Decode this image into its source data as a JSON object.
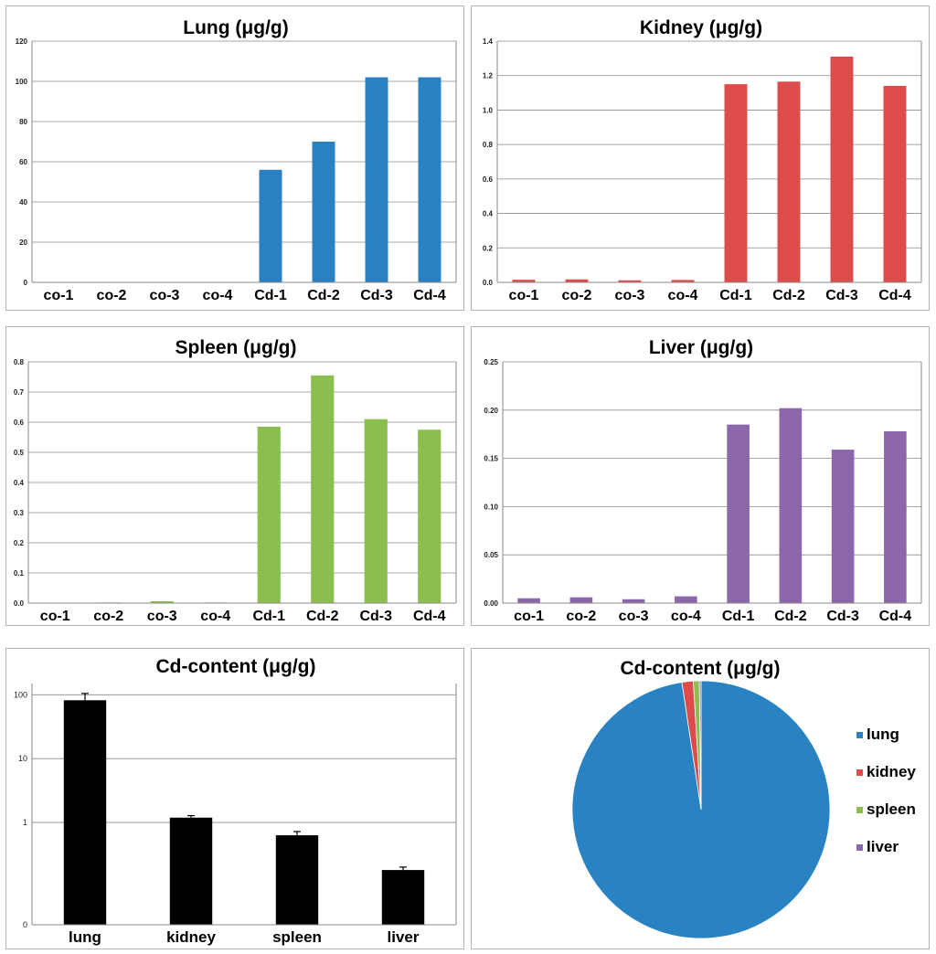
{
  "chart_data": [
    {
      "id": "lung",
      "type": "bar",
      "title": "Lung (μg/g)",
      "categories": [
        "co-1",
        "co-2",
        "co-3",
        "co-4",
        "Cd-1",
        "Cd-2",
        "Cd-3",
        "Cd-4"
      ],
      "values": [
        0,
        0,
        0,
        0,
        56,
        70,
        102,
        102
      ],
      "ylim": [
        0,
        120
      ],
      "yticks": [
        0,
        20,
        40,
        60,
        80,
        100,
        120
      ],
      "ytick_labels": [
        "0",
        "20",
        "40",
        "60",
        "80",
        "100",
        "120"
      ],
      "color": "#2980c2",
      "grid": true
    },
    {
      "id": "kidney",
      "type": "bar",
      "title": "Kidney (μg/g)",
      "categories": [
        "co-1",
        "co-2",
        "co-3",
        "co-4",
        "Cd-1",
        "Cd-2",
        "Cd-3",
        "Cd-4"
      ],
      "values": [
        0.015,
        0.017,
        0.012,
        0.014,
        1.15,
        1.165,
        1.31,
        1.14
      ],
      "ylim": [
        0,
        1.4
      ],
      "yticks": [
        0,
        0.2,
        0.4,
        0.6,
        0.8,
        1.0,
        1.2,
        1.4
      ],
      "ytick_labels": [
        "0.0",
        "0.2",
        "0.4",
        "0.6",
        "0.8",
        "1.0",
        "1.2",
        "1.4"
      ],
      "color": "#dd4b4b",
      "grid": true
    },
    {
      "id": "spleen",
      "type": "bar",
      "title": "Spleen (μg/g)",
      "categories": [
        "co-1",
        "co-2",
        "co-3",
        "co-4",
        "Cd-1",
        "Cd-2",
        "Cd-3",
        "Cd-4"
      ],
      "values": [
        0.001,
        0.002,
        0.006,
        0.002,
        0.585,
        0.755,
        0.61,
        0.575
      ],
      "ylim": [
        0,
        0.8
      ],
      "yticks": [
        0,
        0.1,
        0.2,
        0.3,
        0.4,
        0.5,
        0.6,
        0.7,
        0.8
      ],
      "ytick_labels": [
        "0.0",
        "0.1",
        "0.2",
        "0.3",
        "0.4",
        "0.5",
        "0.6",
        "0.7",
        "0.8"
      ],
      "color": "#8cbd4f",
      "grid": true
    },
    {
      "id": "liver",
      "type": "bar",
      "title": "Liver (μg/g)",
      "categories": [
        "co-1",
        "co-2",
        "co-3",
        "co-4",
        "Cd-1",
        "Cd-2",
        "Cd-3",
        "Cd-4"
      ],
      "values": [
        0.005,
        0.006,
        0.004,
        0.007,
        0.185,
        0.202,
        0.159,
        0.178
      ],
      "ylim": [
        0,
        0.25
      ],
      "yticks": [
        0,
        0.05,
        0.1,
        0.15,
        0.2,
        0.25
      ],
      "ytick_labels": [
        "0.00",
        "0.05",
        "0.10",
        "0.15",
        "0.20",
        "0.25"
      ],
      "color": "#8d67ab",
      "grid": true
    },
    {
      "id": "cd-content-bar",
      "type": "bar",
      "title": "Cd-content (μg/g)",
      "scale": "log",
      "categories": [
        "lung",
        "kidney",
        "spleen",
        "liver"
      ],
      "values": [
        82,
        1.19,
        0.63,
        0.18
      ],
      "error_upper": [
        105,
        1.28,
        0.72,
        0.2
      ],
      "ylim": [
        0.025,
        150
      ],
      "yticks": [
        0.025,
        1,
        10,
        100
      ],
      "ytick_labels": [
        "0",
        "1",
        "10",
        "100"
      ],
      "color": "#000000",
      "grid": true
    },
    {
      "id": "cd-content-pie",
      "type": "pie",
      "title": "Cd-content (μg/g)",
      "labels": [
        "lung",
        "kidney",
        "spleen",
        "liver"
      ],
      "values": [
        82,
        1.19,
        0.63,
        0.18
      ],
      "colors": [
        "#2983c3",
        "#dd4b4b",
        "#8cbd4f",
        "#8d67ab"
      ],
      "legend_position": "right"
    }
  ]
}
